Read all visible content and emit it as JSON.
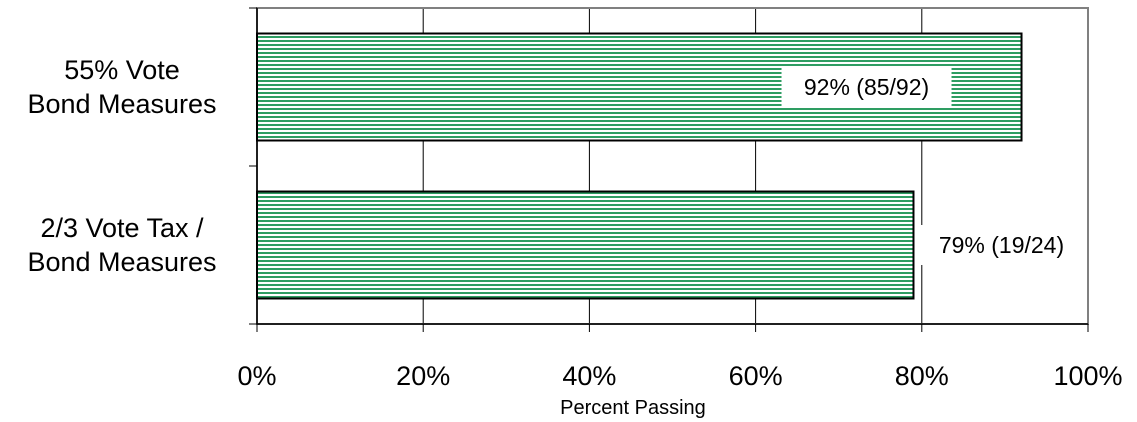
{
  "chart_data": {
    "type": "bar",
    "orientation": "horizontal",
    "categories": [
      "55% Vote\nBond Measures",
      "2/3 Vote Tax /\nBond Measures"
    ],
    "values": [
      92,
      79
    ],
    "data_labels": [
      "92% (85/92)",
      "79% (19/24)"
    ],
    "xlabel": "Percent Passing",
    "ylabel": "",
    "xlim": [
      0,
      100
    ],
    "x_ticks": [
      0,
      20,
      40,
      60,
      80,
      100
    ],
    "x_tick_labels": [
      "0%",
      "20%",
      "40%",
      "60%",
      "80%",
      "100%"
    ],
    "grid": "vertical",
    "bar_color": "#2e9d62",
    "bar_fill": "horizontal-stripes"
  }
}
